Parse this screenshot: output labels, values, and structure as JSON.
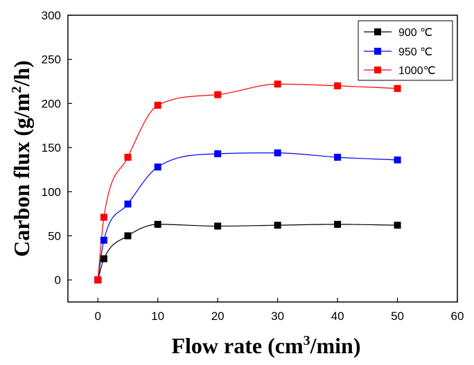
{
  "chart_data": {
    "type": "scatter",
    "xlabel": "Flow rate (cm3/min)",
    "xlabel_parts": {
      "base": "Flow rate (cm",
      "sup": "3",
      "tail": "/min)"
    },
    "ylabel": "Carbon flux (g/m2/h)",
    "ylabel_parts": {
      "base": "Carbon flux (g/m",
      "sup": "2",
      "tail": "/h)"
    },
    "xlim": [
      -5,
      60
    ],
    "ylim": [
      -25,
      300
    ],
    "xticks": [
      "0",
      "10",
      "20",
      "30",
      "40",
      "50",
      "60"
    ],
    "yticks": [
      "0",
      "50",
      "100",
      "150",
      "200",
      "250",
      "300"
    ],
    "x": [
      0,
      1,
      5,
      10,
      20,
      30,
      40,
      50
    ],
    "legend_position": "top-right",
    "series": [
      {
        "name": "900 ℃",
        "color": "#000000",
        "values": [
          0,
          24,
          50,
          63,
          61,
          62,
          63,
          62
        ]
      },
      {
        "name": "950 ℃",
        "color": "#0000ff",
        "values": [
          0,
          45,
          86,
          128,
          143,
          144,
          139,
          136
        ]
      },
      {
        "name": "1000℃",
        "color": "#ff0000",
        "values": [
          0,
          71,
          139,
          198,
          210,
          222,
          220,
          217
        ]
      }
    ]
  }
}
